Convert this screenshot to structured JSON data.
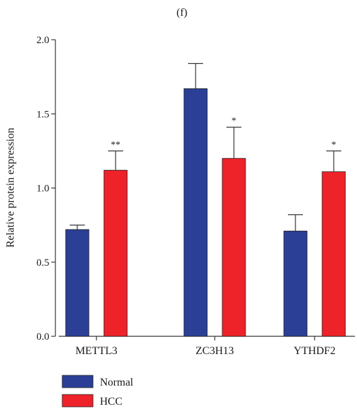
{
  "chart_data": {
    "type": "bar",
    "title": "(f)",
    "xlabel": "",
    "ylabel": "Relative protein expression",
    "ylim": [
      0,
      2.0
    ],
    "yticks": [
      "0.0",
      "0.5",
      "1.0",
      "1.5",
      "2.0"
    ],
    "categories": [
      "METTL3",
      "ZC3H13",
      "YTHDF2"
    ],
    "series": [
      {
        "name": "Normal",
        "color": "#2b3f96",
        "values": [
          0.72,
          1.67,
          0.71
        ],
        "errors": [
          0.03,
          0.17,
          0.11
        ],
        "significance": [
          "",
          "",
          ""
        ]
      },
      {
        "name": "HCC",
        "color": "#ee2229",
        "values": [
          1.12,
          1.2,
          1.11
        ],
        "errors": [
          0.13,
          0.21,
          0.14
        ],
        "significance": [
          "**",
          "*",
          "*"
        ]
      }
    ],
    "error_bars": "upper",
    "legend": "bottom-left",
    "grid": false
  }
}
